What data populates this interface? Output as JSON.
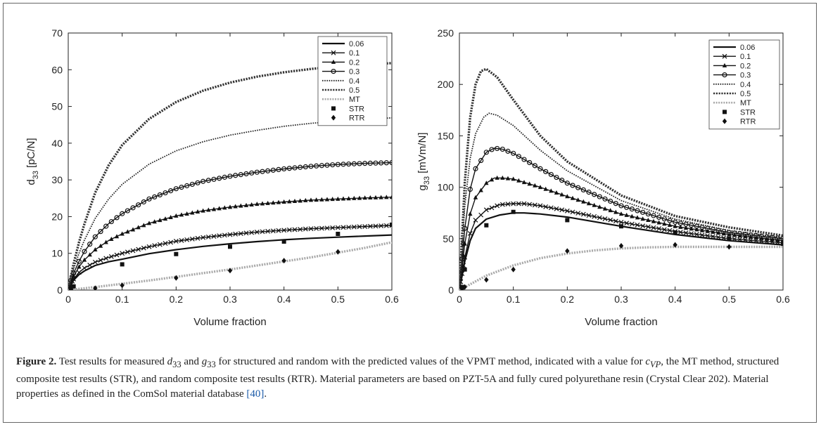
{
  "chart_data": [
    {
      "type": "line",
      "ylabel": "d",
      "ylabel_sub": "33",
      "ylabel_unit": "[pC/N]",
      "xlabel": "Volume fraction",
      "xlim": [
        0,
        0.6
      ],
      "ylim": [
        0,
        70
      ],
      "xticks": [
        "0",
        "0.1",
        "0.2",
        "0.3",
        "0.4",
        "0.5",
        "0.6"
      ],
      "yticks": [
        "0",
        "10",
        "20",
        "30",
        "40",
        "50",
        "60",
        "70"
      ],
      "legend_position": "top-right",
      "series": [
        {
          "name": "0.06",
          "style": "solid",
          "x": [
            0,
            0.005,
            0.01,
            0.02,
            0.03,
            0.05,
            0.075,
            0.1,
            0.15,
            0.2,
            0.25,
            0.3,
            0.35,
            0.4,
            0.45,
            0.5,
            0.55,
            0.6
          ],
          "y": [
            0,
            1.5,
            2.7,
            4.2,
            5.2,
            6.7,
            7.7,
            8.4,
            9.9,
            11,
            11.9,
            12.6,
            13.2,
            13.7,
            14.1,
            14.4,
            14.7,
            15.0
          ]
        },
        {
          "name": "0.1",
          "style": "solid-x",
          "x": [
            0,
            0.005,
            0.01,
            0.02,
            0.03,
            0.05,
            0.075,
            0.1,
            0.15,
            0.2,
            0.25,
            0.3,
            0.35,
            0.4,
            0.45,
            0.5,
            0.55,
            0.6
          ],
          "y": [
            0,
            1.8,
            3.0,
            4.8,
            6.0,
            7.6,
            8.9,
            10.0,
            11.8,
            13.3,
            14.3,
            15.1,
            15.8,
            16.3,
            16.7,
            17.0,
            17.3,
            17.6
          ]
        },
        {
          "name": "0.2",
          "style": "solid-triangle",
          "x": [
            0,
            0.005,
            0.01,
            0.02,
            0.03,
            0.05,
            0.075,
            0.1,
            0.15,
            0.2,
            0.25,
            0.3,
            0.35,
            0.4,
            0.45,
            0.5,
            0.55,
            0.6
          ],
          "y": [
            0,
            2.2,
            3.8,
            6.3,
            8.2,
            11.0,
            13.5,
            15.3,
            18.2,
            20.2,
            21.6,
            22.6,
            23.4,
            24.0,
            24.5,
            24.8,
            25.1,
            25.3
          ]
        },
        {
          "name": "0.3",
          "style": "solid-circle",
          "x": [
            0,
            0.005,
            0.01,
            0.02,
            0.03,
            0.05,
            0.075,
            0.1,
            0.15,
            0.2,
            0.25,
            0.3,
            0.35,
            0.4,
            0.45,
            0.5,
            0.55,
            0.6
          ],
          "y": [
            0,
            2.6,
            4.6,
            7.8,
            10.5,
            14.5,
            18.1,
            20.8,
            24.8,
            27.6,
            29.6,
            31.0,
            32.1,
            33.0,
            33.7,
            34.2,
            34.5,
            34.7
          ]
        },
        {
          "name": "0.4",
          "style": "dotted",
          "x": [
            0,
            0.005,
            0.01,
            0.02,
            0.03,
            0.05,
            0.075,
            0.1,
            0.15,
            0.2,
            0.25,
            0.3,
            0.35,
            0.4,
            0.45,
            0.5,
            0.55,
            0.6
          ],
          "y": [
            0,
            3.2,
            5.8,
            10.0,
            13.6,
            19.5,
            24.8,
            28.8,
            34.3,
            37.9,
            40.4,
            42.2,
            43.5,
            44.6,
            45.4,
            46.0,
            46.5,
            46.9
          ]
        },
        {
          "name": "0.5",
          "style": "thick-dotted",
          "x": [
            0,
            0.005,
            0.01,
            0.02,
            0.03,
            0.05,
            0.075,
            0.1,
            0.15,
            0.2,
            0.25,
            0.3,
            0.35,
            0.4,
            0.45,
            0.5,
            0.55,
            0.6
          ],
          "y": [
            0,
            3.9,
            7.2,
            13.0,
            18.0,
            26.5,
            34.0,
            39.5,
            46.6,
            51.2,
            54.3,
            56.5,
            58.1,
            59.3,
            60.2,
            60.9,
            61.4,
            61.8
          ]
        },
        {
          "name": "MT",
          "style": "gray-dotted",
          "x": [
            0,
            0.05,
            0.1,
            0.15,
            0.2,
            0.25,
            0.3,
            0.35,
            0.4,
            0.45,
            0.5,
            0.55,
            0.6
          ],
          "y": [
            0,
            0.8,
            1.7,
            2.6,
            3.6,
            4.6,
            5.6,
            6.7,
            7.8,
            8.9,
            10.2,
            11.5,
            13.0
          ]
        },
        {
          "name": "STR",
          "style": "square",
          "x": [
            0.005,
            0.01,
            0.1,
            0.2,
            0.3,
            0.4,
            0.5,
            0.6
          ],
          "y": [
            0.5,
            1.0,
            7.0,
            9.8,
            11.8,
            13.2,
            15.3,
            17.8
          ]
        },
        {
          "name": "RTR",
          "style": "diamond",
          "x": [
            0.005,
            0.05,
            0.1,
            0.2,
            0.3,
            0.4,
            0.5
          ],
          "y": [
            0.2,
            0.5,
            1.3,
            3.3,
            5.3,
            8.0,
            10.4
          ]
        }
      ]
    },
    {
      "type": "line",
      "ylabel": "g",
      "ylabel_sub": "33",
      "ylabel_unit": "[mVm/N]",
      "xlabel": "Volume fraction",
      "xlim": [
        0,
        0.6
      ],
      "ylim": [
        0,
        250
      ],
      "xticks": [
        "0",
        "0.1",
        "0.2",
        "0.3",
        "0.4",
        "0.5",
        "0.6"
      ],
      "yticks": [
        "0",
        "50",
        "100",
        "150",
        "200",
        "250"
      ],
      "legend_position": "top-right",
      "series": [
        {
          "name": "0.06",
          "style": "solid",
          "x": [
            0,
            0.01,
            0.02,
            0.03,
            0.05,
            0.075,
            0.1,
            0.12,
            0.15,
            0.2,
            0.3,
            0.4,
            0.5,
            0.6
          ],
          "y": [
            0,
            28,
            48,
            60,
            69,
            73,
            75,
            75,
            74,
            71,
            62,
            54,
            48,
            44
          ]
        },
        {
          "name": "0.1",
          "style": "solid-x",
          "x": [
            0,
            0.01,
            0.02,
            0.03,
            0.05,
            0.075,
            0.1,
            0.12,
            0.15,
            0.2,
            0.3,
            0.4,
            0.5,
            0.6
          ],
          "y": [
            0,
            32,
            55,
            68,
            78,
            83,
            84,
            84,
            82,
            77,
            66,
            57,
            50,
            46
          ]
        },
        {
          "name": "0.2",
          "style": "solid-triangle",
          "x": [
            0,
            0.01,
            0.02,
            0.03,
            0.05,
            0.065,
            0.08,
            0.1,
            0.15,
            0.2,
            0.3,
            0.4,
            0.5,
            0.6
          ],
          "y": [
            0,
            45,
            74,
            90,
            104,
            109,
            109,
            108,
            100,
            91,
            74,
            62,
            54,
            48
          ]
        },
        {
          "name": "0.3",
          "style": "solid-circle",
          "x": [
            0,
            0.01,
            0.02,
            0.03,
            0.05,
            0.065,
            0.08,
            0.1,
            0.15,
            0.2,
            0.3,
            0.4,
            0.5,
            0.6
          ],
          "y": [
            0,
            60,
            98,
            118,
            134,
            138,
            137,
            133,
            118,
            104,
            82,
            66,
            56,
            50
          ]
        },
        {
          "name": "0.4",
          "style": "dotted",
          "x": [
            0,
            0.01,
            0.02,
            0.03,
            0.045,
            0.055,
            0.07,
            0.1,
            0.15,
            0.2,
            0.3,
            0.4,
            0.5,
            0.6
          ],
          "y": [
            0,
            82,
            128,
            152,
            168,
            172,
            170,
            160,
            136,
            116,
            87,
            69,
            58,
            51
          ]
        },
        {
          "name": "0.5",
          "style": "thick-dotted",
          "x": [
            0,
            0.01,
            0.02,
            0.03,
            0.04,
            0.05,
            0.07,
            0.1,
            0.15,
            0.2,
            0.3,
            0.4,
            0.5,
            0.6
          ],
          "y": [
            0,
            105,
            168,
            200,
            213,
            215,
            207,
            185,
            150,
            125,
            92,
            72,
            61,
            53
          ]
        },
        {
          "name": "MT",
          "style": "gray-dotted",
          "x": [
            0,
            0.05,
            0.1,
            0.15,
            0.2,
            0.25,
            0.3,
            0.35,
            0.4,
            0.45,
            0.5,
            0.55,
            0.6
          ],
          "y": [
            0,
            14,
            24,
            31,
            35.5,
            38.5,
            40.5,
            41.5,
            42,
            42,
            42,
            42,
            42
          ]
        },
        {
          "name": "STR",
          "style": "square",
          "x": [
            0.005,
            0.01,
            0.05,
            0.1,
            0.2,
            0.3,
            0.4,
            0.5,
            0.6
          ],
          "y": [
            3,
            20,
            63,
            76,
            68,
            62,
            56,
            50,
            45
          ]
        },
        {
          "name": "RTR",
          "style": "diamond",
          "x": [
            0.005,
            0.01,
            0.05,
            0.1,
            0.2,
            0.3,
            0.4,
            0.5
          ],
          "y": [
            1,
            3,
            10,
            20,
            38,
            43,
            44,
            42
          ]
        }
      ]
    }
  ],
  "caption": {
    "label": "Figure 2.",
    "text_1": " Test results for measured ",
    "d_var": "d",
    "d_sub": "33",
    "text_2": " and ",
    "g_var": "g",
    "g_sub": "33",
    "text_3": " for structured and random with the predicted values of the VPMT method, indicated with a value for ",
    "c_var": "c",
    "c_sub": "VP",
    "text_4": ", the MT method, structured composite test results (STR), and random composite test results (RTR). Material parameters are based on PZT-5A and fully cured polyurethane resin (Crystal Clear 202). Material properties as defined in the ComSol material database ",
    "ref": "[40]",
    "text_5": "."
  }
}
